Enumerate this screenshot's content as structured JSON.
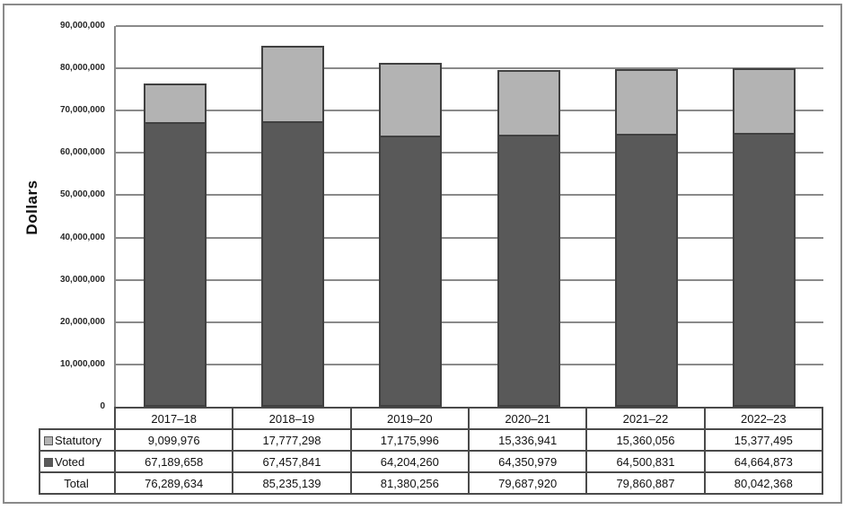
{
  "chart_data": {
    "type": "bar",
    "stacked": true,
    "title": "",
    "xlabel": "",
    "ylabel": "Dollars",
    "categories": [
      "2017–18",
      "2018–19",
      "2019–20",
      "2020–21",
      "2021–22",
      "2022–23"
    ],
    "series": [
      {
        "name": "Statutory",
        "color": "#b3b3b3",
        "values": [
          9099976,
          17777298,
          17175996,
          15336941,
          15360056,
          15377495
        ]
      },
      {
        "name": "Voted",
        "color": "#595959",
        "values": [
          67189658,
          67457841,
          64204260,
          64350979,
          64500831,
          64664873
        ]
      }
    ],
    "totals": [
      76289634,
      85235139,
      81380256,
      79687920,
      79860887,
      80042368
    ],
    "ylim": [
      0,
      90000000
    ],
    "ytick_step": 10000000,
    "y_tick_labels": [
      "0",
      "10,000,000",
      "20,000,000",
      "30,000,000",
      "40,000,000",
      "50,000,000",
      "60,000,000",
      "70,000,000",
      "80,000,000",
      "90,000,000"
    ],
    "grid": true,
    "bar_border_color": "#404040",
    "gridline_color": "#8a8a8a",
    "legend_position": "table-left"
  },
  "table": {
    "rows": [
      {
        "label": "Statutory",
        "swatch_color": "#b3b3b3",
        "values": [
          "9,099,976",
          "17,777,298",
          "17,175,996",
          "15,336,941",
          "15,360,056",
          "15,377,495"
        ]
      },
      {
        "label": "Voted",
        "swatch_color": "#595959",
        "values": [
          "67,189,658",
          "67,457,841",
          "64,204,260",
          "64,350,979",
          "64,500,831",
          "64,664,873"
        ]
      },
      {
        "label": "Total",
        "swatch_color": null,
        "values": [
          "76,289,634",
          "85,235,139",
          "81,380,256",
          "79,687,920",
          "79,860,887",
          "80,042,368"
        ]
      }
    ]
  }
}
